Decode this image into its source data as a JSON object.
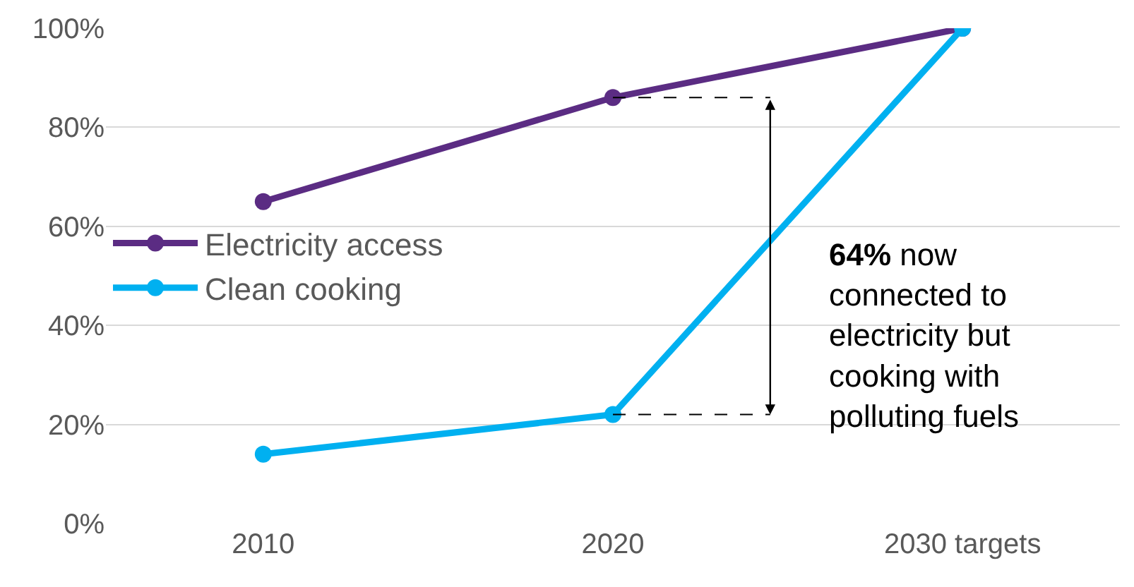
{
  "chart_data": {
    "type": "line",
    "categories": [
      "2010",
      "2020",
      "2030 targets"
    ],
    "series": [
      {
        "name": "Electricity access",
        "color": "#5b2c83",
        "values": [
          65,
          86,
          100
        ]
      },
      {
        "name": "Clean cooking",
        "color": "#00b0f0",
        "values": [
          14,
          22,
          100
        ]
      }
    ],
    "ylim": [
      0,
      100
    ],
    "yticks": [
      {
        "value": 0,
        "label": "0%"
      },
      {
        "value": 20,
        "label": "20%"
      },
      {
        "value": 40,
        "label": "40%"
      },
      {
        "value": 60,
        "label": "60%"
      },
      {
        "value": 80,
        "label": "80%"
      },
      {
        "value": 100,
        "label": "100%"
      }
    ],
    "grid": "y",
    "legend": "left",
    "marker": "circle",
    "line_style": "solid",
    "ref_lines": [
      {
        "axis": "y",
        "value": 86,
        "color": "#000000",
        "line_style": "dashed"
      },
      {
        "axis": "y",
        "value": 22,
        "color": "#000000",
        "line_style": "dashed"
      }
    ],
    "annotations": [
      "64% now\nconnected to\nelectricity but\ncooking with\npolluting fuels"
    ]
  }
}
